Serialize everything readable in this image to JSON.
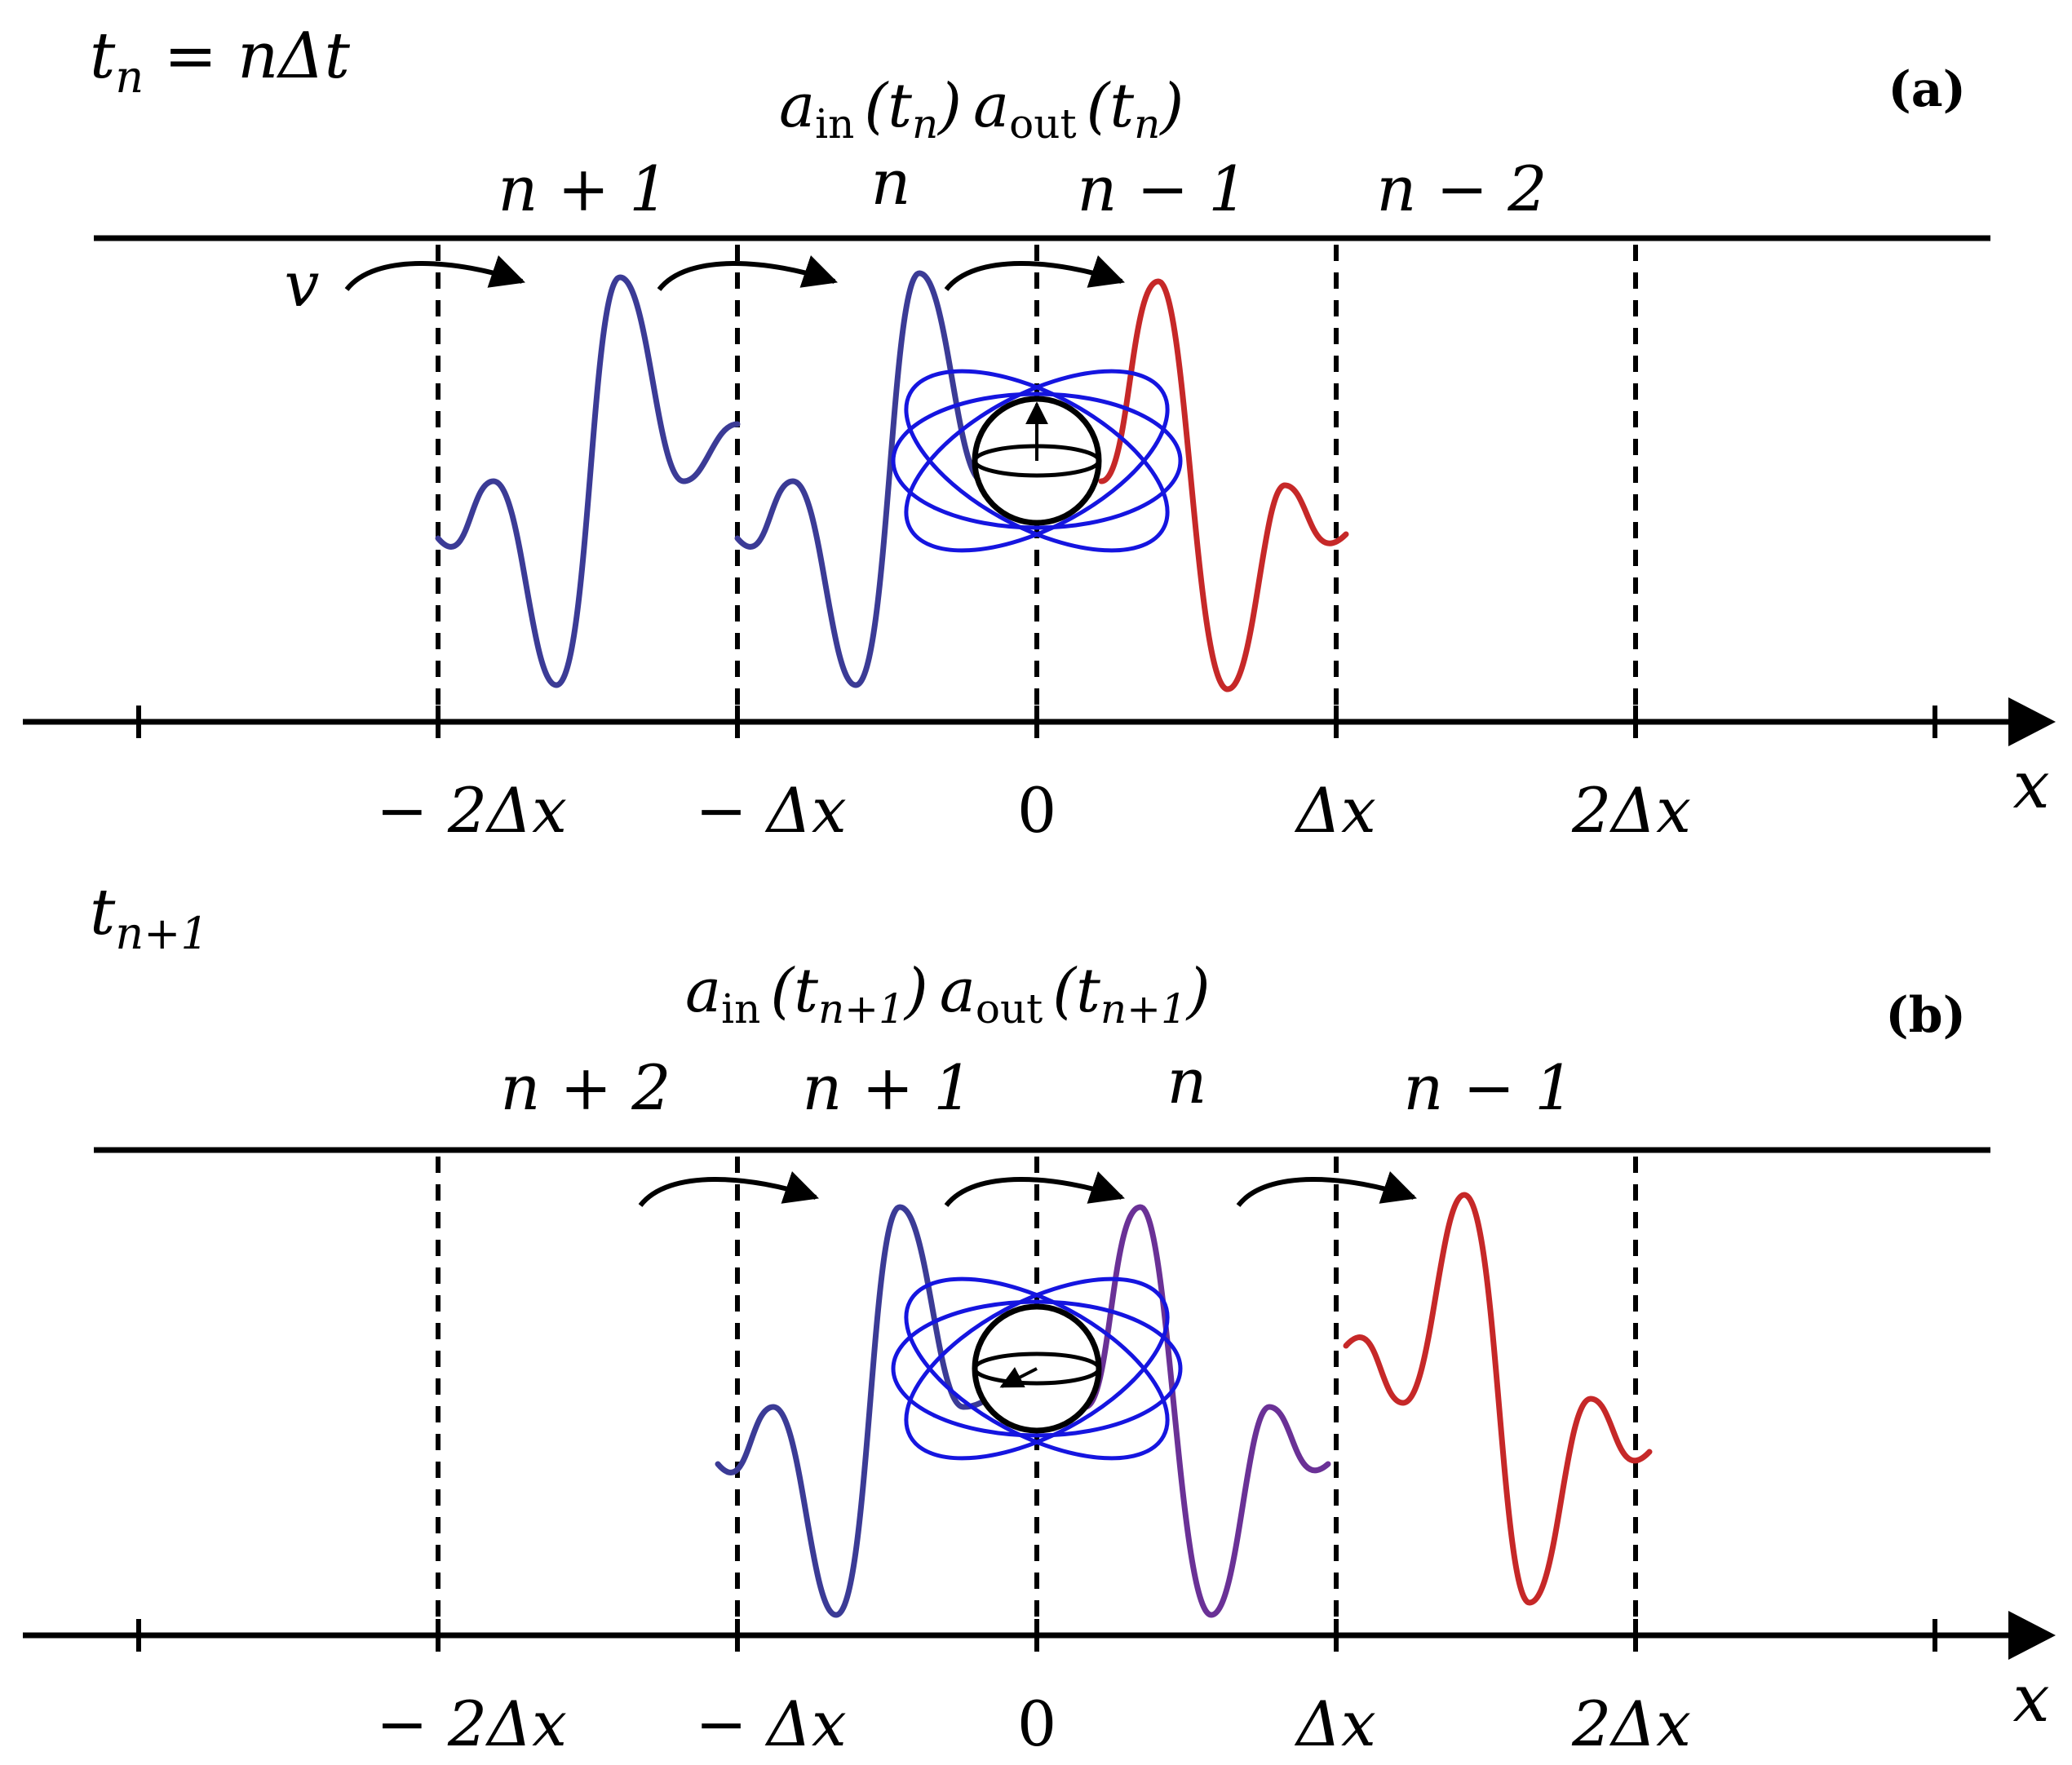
{
  "colors": {
    "axis": "#000000",
    "incoming_wave": "#3b3b96",
    "outgoing_wave": "#c62828",
    "mixed_wave": "#6a3196",
    "atom_orbit": "#1515e0",
    "atom_sphere": "#000000"
  },
  "panel_a": {
    "label": "(a)",
    "time": {
      "t": "t",
      "sub": "n",
      "rest": " = nΔt"
    },
    "operators": {
      "a_in": "a",
      "a_in_sub": "in",
      "a_in_arg": "(t",
      "a_in_arg_sub": "n",
      "a_in_close": ")",
      "a_out": "a",
      "a_out_sub": "out",
      "a_out_arg": "(t",
      "a_out_arg_sub": "n",
      "a_out_close": ")"
    },
    "velocity": "v",
    "bin_labels": [
      "n + 1",
      "n",
      "n − 1",
      "n − 2"
    ],
    "x_ticks": [
      "− 2Δx",
      "− Δx",
      "0",
      "Δx",
      "2Δx"
    ],
    "axis_label": "x"
  },
  "panel_b": {
    "label": "(b)",
    "time": {
      "t": "t",
      "sub": "n+1",
      "rest": ""
    },
    "operators": {
      "a_in": "a",
      "a_in_sub": "in",
      "a_in_arg": "(t",
      "a_in_arg_sub": "n+1",
      "a_in_close": ")",
      "a_out": "a",
      "a_out_sub": "out",
      "a_out_arg": "(t",
      "a_out_arg_sub": "n+1",
      "a_out_close": ")"
    },
    "bin_labels": [
      "n + 2",
      "n + 1",
      "n",
      "n − 1"
    ],
    "x_ticks": [
      "− 2Δx",
      "− Δx",
      "0",
      "Δx",
      "2Δx"
    ],
    "axis_label": "x"
  }
}
